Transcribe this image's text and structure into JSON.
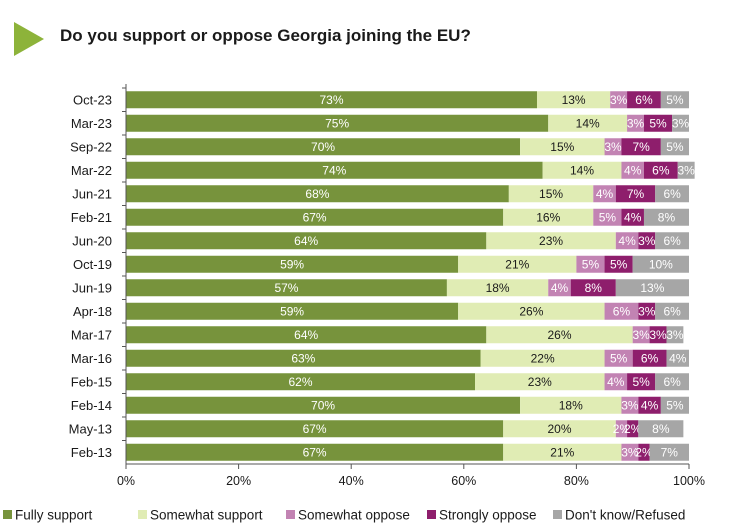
{
  "title": "Do you support or oppose Georgia joining the EU?",
  "chart_data": {
    "type": "bar",
    "orientation": "horizontal",
    "stacked": true,
    "title": "Do you support or oppose Georgia joining the EU?",
    "xlabel": "",
    "ylabel": "",
    "xlim": [
      0,
      100
    ],
    "x_ticks": [
      "0%",
      "20%",
      "40%",
      "60%",
      "80%",
      "100%"
    ],
    "legend_position": "bottom",
    "grid": false,
    "categories": [
      "Oct-23",
      "Mar-23",
      "Sep-22",
      "Mar-22",
      "Jun-21",
      "Feb-21",
      "Jun-20",
      "Oct-19",
      "Jun-19",
      "Apr-18",
      "Mar-17",
      "Mar-16",
      "Feb-15",
      "Feb-14",
      "May-13",
      "Feb-13"
    ],
    "series": [
      {
        "name": "Fully support",
        "color": "#77933c",
        "label_color": "#ffffff",
        "values": [
          73,
          75,
          70,
          74,
          68,
          67,
          64,
          59,
          57,
          59,
          64,
          63,
          62,
          70,
          67,
          67
        ]
      },
      {
        "name": "Somewhat support",
        "color": "#e0ecb4",
        "label_color": "#1a1a1a",
        "values": [
          13,
          14,
          15,
          14,
          15,
          16,
          23,
          21,
          18,
          26,
          26,
          22,
          23,
          18,
          20,
          21
        ]
      },
      {
        "name": "Somewhat oppose",
        "color": "#c283b3",
        "label_color": "#ffffff",
        "values": [
          3,
          3,
          3,
          4,
          4,
          5,
          4,
          5,
          4,
          6,
          3,
          5,
          4,
          3,
          2,
          3
        ]
      },
      {
        "name": "Strongly oppose",
        "color": "#8e1e6c",
        "label_color": "#ffffff",
        "values": [
          6,
          5,
          7,
          6,
          7,
          4,
          3,
          5,
          8,
          3,
          3,
          6,
          5,
          4,
          2,
          2
        ]
      },
      {
        "name": "Don't know/Refused",
        "color": "#a6a6a6",
        "label_color": "#ffffff",
        "values": [
          5,
          3,
          5,
          3,
          6,
          8,
          6,
          10,
          13,
          6,
          3,
          4,
          6,
          5,
          8,
          7
        ]
      }
    ]
  },
  "colors": {
    "accent_arrow": "#8db33a"
  }
}
